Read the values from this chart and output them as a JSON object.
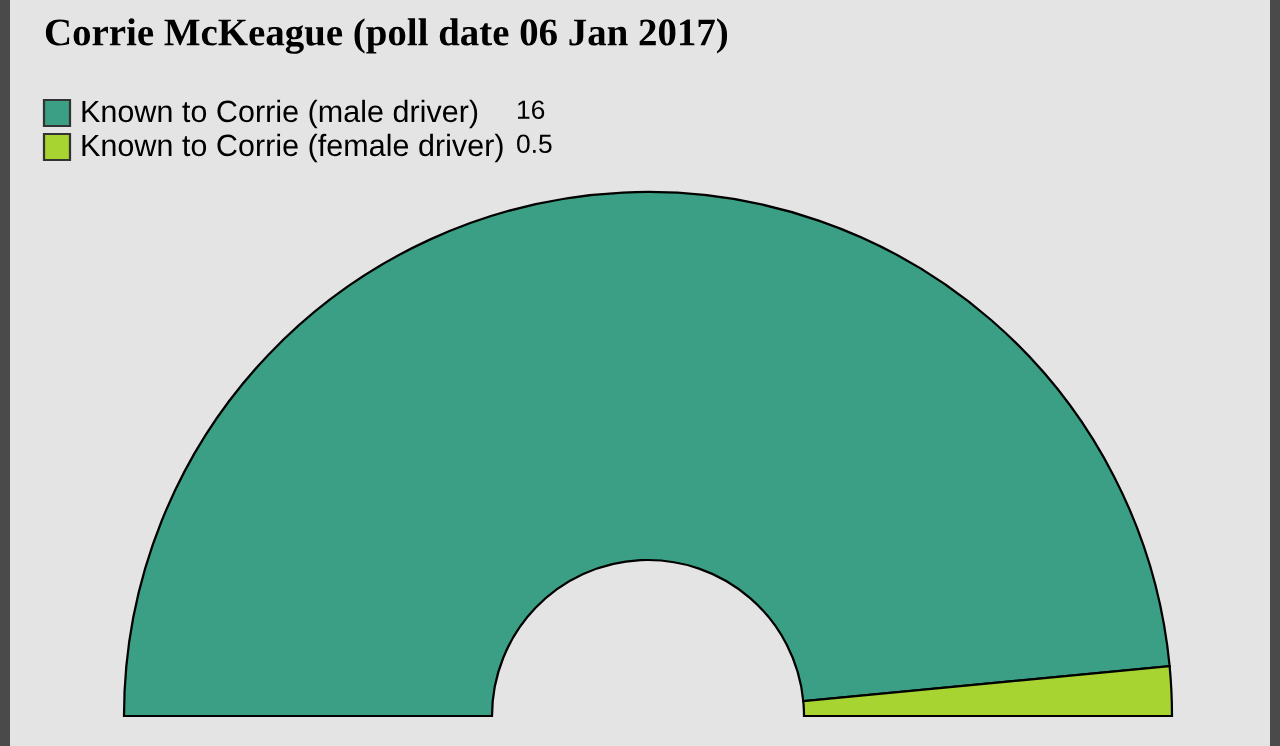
{
  "chart_data": {
    "type": "donut",
    "title": "Corrie McKeague (poll date 06 Jan 2017)",
    "categories": [
      "Known to Corrie (male driver)",
      "Known to Corrie (female driver)"
    ],
    "values": [
      16,
      0.5
    ],
    "colors": [
      "#3a9f84",
      "#a8d431"
    ],
    "data_labels": true,
    "legend": "top left"
  }
}
